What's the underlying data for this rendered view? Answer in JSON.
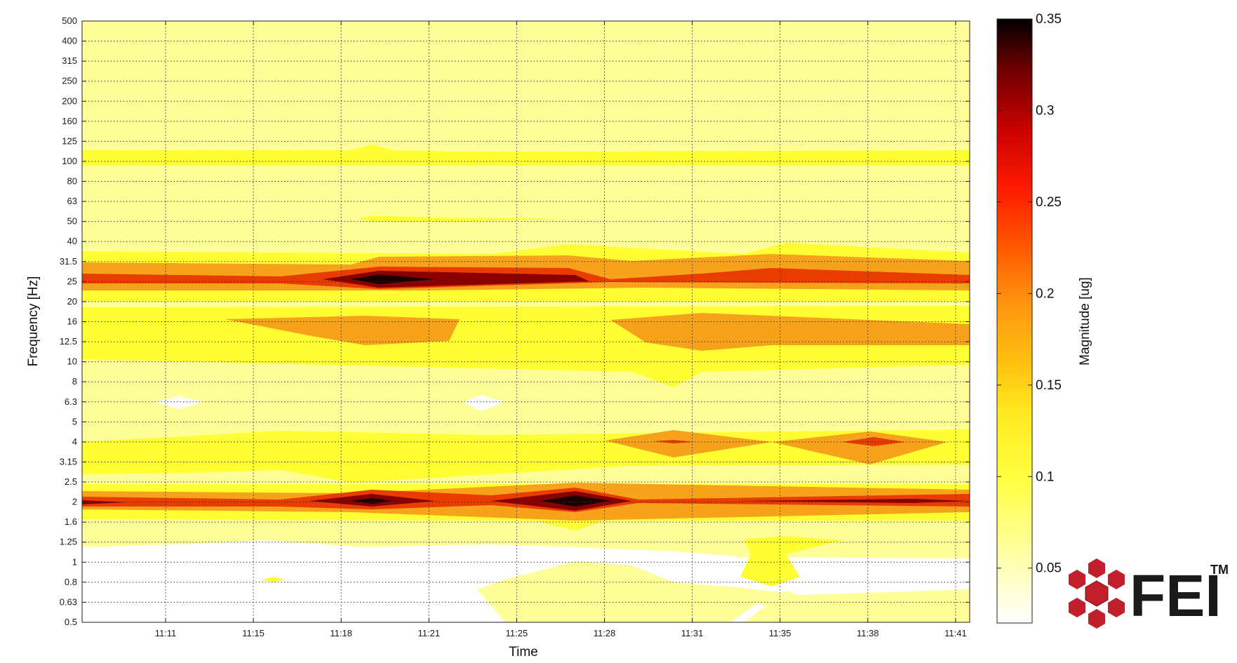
{
  "chart_data": {
    "type": "heatmap",
    "title": "",
    "xlabel": "Time",
    "ylabel": "Frequency [Hz]",
    "colorbar_label": "Magnitude [ug]",
    "x_ticks": [
      "11:11",
      "11:15",
      "11:18",
      "11:21",
      "11:25",
      "11:28",
      "11:31",
      "11:35",
      "11:38",
      "11:41"
    ],
    "y_ticks": [
      "0.5",
      "0.63",
      "0.8",
      "1",
      "1.25",
      "1.6",
      "2",
      "2.5",
      "3.15",
      "4",
      "5",
      "6.3",
      "8",
      "10",
      "12.5",
      "16",
      "20",
      "25",
      "31.5",
      "40",
      "50",
      "63",
      "80",
      "100",
      "125",
      "160",
      "200",
      "250",
      "315",
      "400",
      "500"
    ],
    "colorbar_ticks": [
      "0.05",
      "0.1",
      "0.15",
      "0.2",
      "0.25",
      "0.3",
      "0.35"
    ],
    "colorbar_range": [
      0.02,
      0.35
    ],
    "colormap": "hot (reversed): white-yellow-orange-red-black",
    "grid": true,
    "bands": [
      {
        "freq": "100",
        "level": 0.08
      },
      {
        "freq": "25",
        "level": 0.35
      },
      {
        "freq": "16",
        "level": 0.15
      },
      {
        "freq": "12.5",
        "level": 0.14
      },
      {
        "freq": "4",
        "level": 0.22
      },
      {
        "freq": "2",
        "level": 0.35
      },
      {
        "freq": "0.5-1.25",
        "level": 0.03
      }
    ]
  },
  "logo": {
    "text": "FEI",
    "trademark": "TM"
  },
  "colors": {
    "background": "#ffffff",
    "pale_yellow": "#ffff99",
    "yellow": "#ffff33",
    "orange": "#f7a21b",
    "red": "#cc1f00",
    "dark": "#2a0000"
  }
}
